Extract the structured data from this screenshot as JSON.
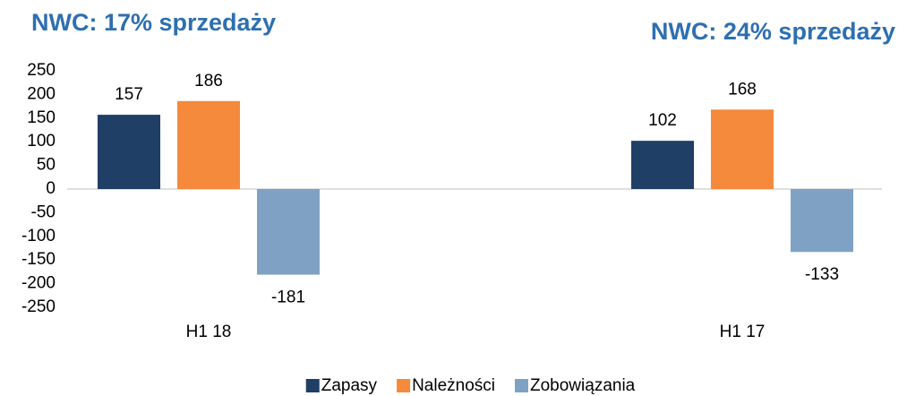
{
  "chart_data": {
    "type": "bar",
    "annotations": [
      "NWC: 17% sprzedaży",
      "NWC: 24% sprzedaży"
    ],
    "categories": [
      "H1 18",
      "H1 17"
    ],
    "series": [
      {
        "name": "Zapasy",
        "color": "#1f3f66",
        "values": [
          157,
          102
        ]
      },
      {
        "name": "Należności",
        "color": "#f58a3c",
        "values": [
          186,
          168
        ]
      },
      {
        "name": "Zobowiązania",
        "color": "#7fa2c4",
        "values": [
          -181,
          -133
        ]
      }
    ],
    "ylim": [
      -250,
      250
    ],
    "yticks": [
      -250,
      -200,
      -150,
      -100,
      -50,
      0,
      50,
      100,
      150,
      200,
      250
    ],
    "legend": "bottom"
  }
}
